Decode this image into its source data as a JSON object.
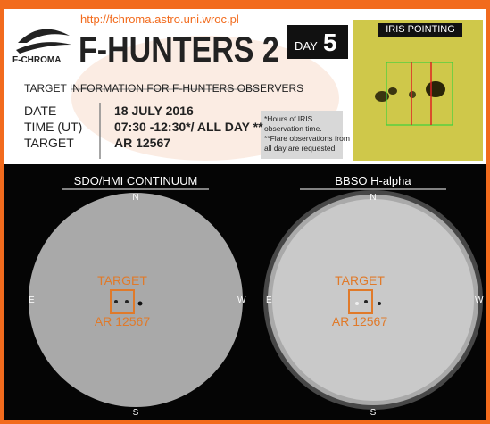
{
  "header": {
    "url": "http://fchroma.astro.uni.wroc.pl",
    "logo_text": "F-CHROMA",
    "title": "F-HUNTERS 2",
    "day_label": "DAY",
    "day_number": "5",
    "subtitle": "TARGET INFORMATION FOR F-HUNTERS OBSERVERS"
  },
  "info": {
    "rows": [
      [
        "DATE",
        "18 JULY 2016"
      ],
      [
        "TIME (UT)",
        "07:30 -12:30*/ ALL DAY **"
      ],
      [
        "TARGET",
        "AR 12567"
      ]
    ],
    "notes": [
      "*Hours of IRIS",
      "observation time.",
      "**Flare observations from",
      "all day are requested."
    ]
  },
  "iris": {
    "title": "IRIS POINTING"
  },
  "panels": [
    {
      "title": "SDO/HMI CONTINUUM",
      "north": "N",
      "south": "S",
      "east": "E",
      "west": "W",
      "target": "TARGET",
      "region": "AR 12567"
    },
    {
      "title": "BBSO H-alpha",
      "north": "N",
      "south": "S",
      "east": "E",
      "west": "W",
      "target": "TARGET",
      "region": "AR 12567"
    }
  ]
}
